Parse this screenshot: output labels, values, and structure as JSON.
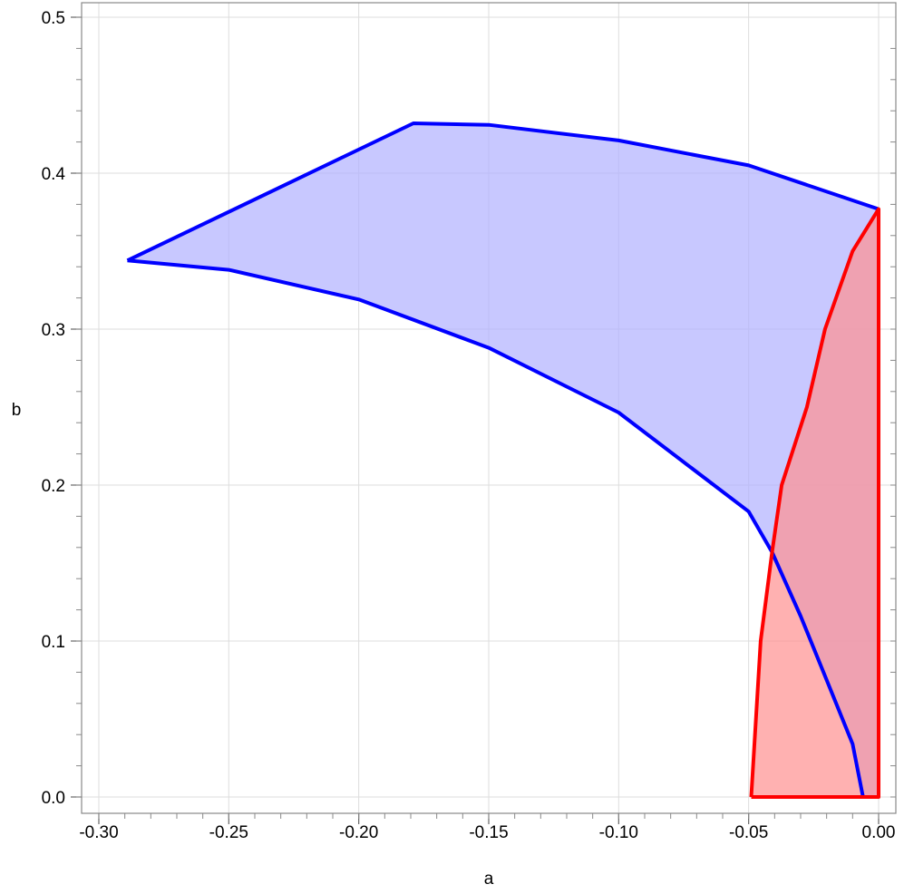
{
  "chart_data": {
    "type": "area",
    "title": "",
    "xlabel": "a",
    "ylabel": "b",
    "xlim": [
      -0.3,
      0.0
    ],
    "ylim": [
      0.0,
      0.5
    ],
    "grid": true,
    "x_ticks": [
      "-0.30",
      "-0.25",
      "-0.20",
      "-0.15",
      "-0.10",
      "-0.05",
      "0.00"
    ],
    "y_ticks": [
      "0.0",
      "0.1",
      "0.2",
      "0.3",
      "0.4",
      "0.5"
    ],
    "regions": [
      {
        "fill": "#b0b0ff",
        "stroke": "#0000ff",
        "boundary": [
          [
            -0.289,
            0.344
          ],
          [
            -0.179,
            0.432
          ],
          [
            -0.15,
            0.431
          ],
          [
            -0.1,
            0.421
          ],
          [
            -0.05,
            0.405
          ],
          [
            0.0,
            0.377
          ],
          [
            0.0,
            0.0
          ],
          [
            -0.006,
            0.0
          ],
          [
            -0.01,
            0.034
          ],
          [
            -0.02,
            0.075
          ],
          [
            -0.03,
            0.116
          ],
          [
            -0.041,
            0.157
          ],
          [
            -0.05,
            0.183
          ],
          [
            -0.1,
            0.2465
          ],
          [
            -0.15,
            0.288
          ],
          [
            -0.2,
            0.319
          ],
          [
            -0.25,
            0.338
          ],
          [
            -0.289,
            0.344
          ]
        ],
        "outline": [
          [
            [
              -0.289,
              0.344
            ],
            [
              -0.179,
              0.432
            ],
            [
              -0.15,
              0.431
            ],
            [
              -0.1,
              0.421
            ],
            [
              -0.05,
              0.405
            ],
            [
              0.0,
              0.377
            ]
          ],
          [
            [
              -0.289,
              0.344
            ],
            [
              -0.25,
              0.338
            ],
            [
              -0.2,
              0.319
            ],
            [
              -0.15,
              0.288
            ],
            [
              -0.1,
              0.2465
            ],
            [
              -0.05,
              0.183
            ],
            [
              -0.041,
              0.157
            ],
            [
              -0.03,
              0.116
            ],
            [
              -0.02,
              0.075
            ],
            [
              -0.01,
              0.034
            ],
            [
              -0.006,
              0.0
            ]
          ]
        ]
      },
      {
        "fill": "#ff9090",
        "stroke": "#ff0000",
        "boundary": [
          [
            -0.049,
            0.0
          ],
          [
            -0.0454,
            0.1
          ],
          [
            -0.041,
            0.157
          ],
          [
            -0.0373,
            0.2
          ],
          [
            -0.0276,
            0.25
          ],
          [
            -0.0206,
            0.3
          ],
          [
            -0.01,
            0.35
          ],
          [
            0.0,
            0.377
          ],
          [
            0.0,
            0.0
          ],
          [
            -0.049,
            0.0
          ]
        ],
        "outline": [
          [
            [
              -0.049,
              0.0
            ],
            [
              -0.0454,
              0.1
            ],
            [
              -0.041,
              0.157
            ],
            [
              -0.0373,
              0.2
            ],
            [
              -0.0276,
              0.25
            ],
            [
              -0.0206,
              0.3
            ],
            [
              -0.01,
              0.35
            ],
            [
              0.0,
              0.377
            ],
            [
              0.0,
              0.0
            ],
            [
              -0.049,
              0.0
            ]
          ]
        ]
      }
    ]
  }
}
